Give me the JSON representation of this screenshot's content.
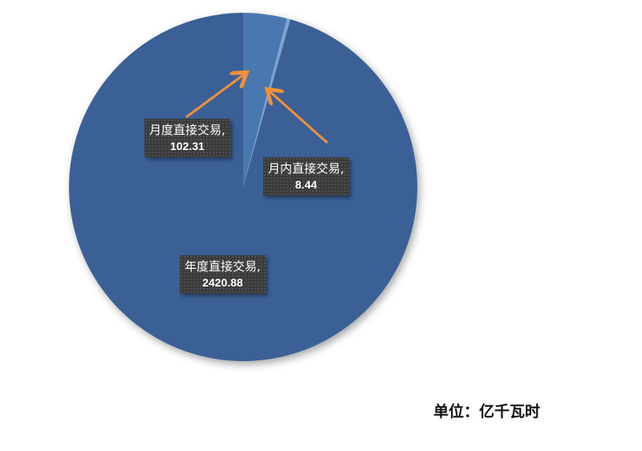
{
  "chart_data": {
    "type": "pie",
    "title": "",
    "unit_label": "单位：亿千瓦时",
    "slices": [
      {
        "name": "月度直接交易",
        "value": 102.31,
        "value_label": "102.31",
        "color": "#4a78b0"
      },
      {
        "name": "月内直接交易",
        "value": 8.44,
        "value_label": "8.44",
        "color": "#7ea2d2"
      },
      {
        "name": "年度直接交易",
        "value": 2420.88,
        "value_label": "2420.88",
        "color": "#3b6195"
      }
    ],
    "start_angle": "12 o'clock, clockwise",
    "arrow_color": "#f0913a"
  }
}
